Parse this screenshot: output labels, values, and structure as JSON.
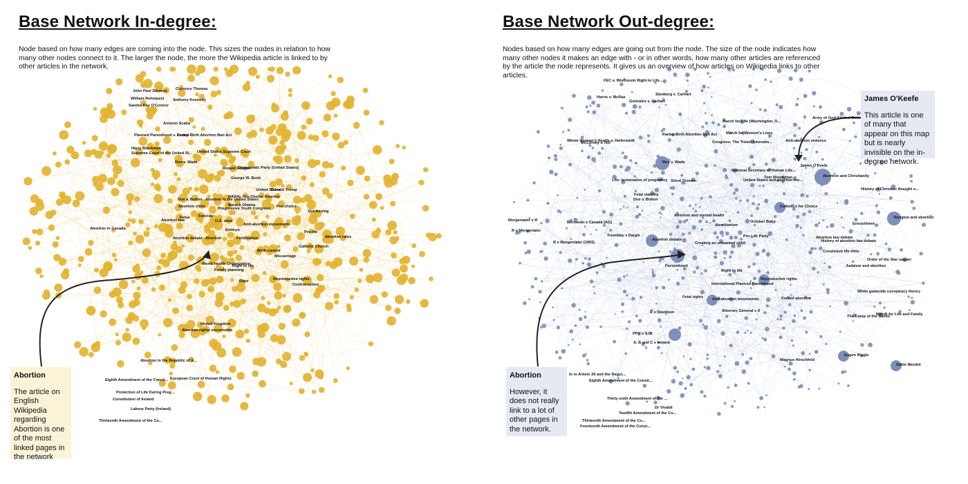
{
  "left": {
    "title": "Base Network In-degree:",
    "description": "Node based on how many edges are coming into the node. This sizes the nodes in relation to how many other nodes connect to it. The larger the node, the more the Wikipedia article is linked to by other articles in the network.",
    "node_color": "#e3b331",
    "edge_color": "#efd486",
    "callout": {
      "title": "Abortion",
      "body": "The article on English Wikipedia regarding Abortion is one of the most linked pages in the network"
    },
    "labels": [
      "John Paul Stevens",
      "Clarence Thomas",
      "William Rehnquist",
      "Anthony Kennedy",
      "Sandra Day O'Connor",
      "Antonin Scalia",
      "Planned Parenthood v. Casey",
      "Partial-Birth Abortion Ban Act",
      "Harry Blackmun",
      "Supreme Court of the United St...",
      "United States Supreme Court",
      "Roe v. Wade",
      "Ronald Reagan",
      "Democratic Party (United States)",
      "George W. Bush",
      "United States",
      "Donald Trump",
      "Doe v. Bolton",
      "Abortion in the United States",
      "NARAL Pro-Choice America",
      "Barack Obama",
      "Abortion clinic",
      "Progressive Youth Congress",
      "Pro-choice",
      "Quickening",
      "Fetus",
      "Abortion law",
      "Feticide",
      "U.S. state",
      "Anti-abortion movements",
      "Embryo",
      "Pro-life",
      "Abortion in Canada",
      "Abortion debate",
      "Abortion",
      "Fertilization",
      "Abortion rates",
      "Catholic Church",
      "Birth control",
      "Miscarriage",
      "World Health Organization",
      "Right to life",
      "Family planning",
      "Rape",
      "Reproductive rights",
      "Contraception",
      "United Kingdom",
      "Abortion-rights movements",
      "Abortion in the Republic of Ir...",
      "Eighth Amendment of the Consti...",
      "European Court of Human Rights",
      "Protection of Life During Preg...",
      "Constitution of Ireland",
      "Labour Party (Ireland)",
      "Thirteenth Amendment of the Co..."
    ]
  },
  "right": {
    "title": "Base Network Out-degree:",
    "description": "Nodes based on how many edges are going out from the node. The size of the node indicates how many other nodes it makes an edge with - or in other words, how many other articles are referenced by the article the node represents. It gives us an overview of how articles on Wikipedia links to other articles.",
    "node_color": "#7f8fba",
    "edge_color": "#c5cde2",
    "callout_abortion": {
      "title": "Abortion",
      "body": "However, it does not really link to a lot of other pages in the network."
    },
    "callout_okeefe": {
      "title": "James O'Keefe",
      "body": "This article is one of many that appear on this map but is nearly invisible on the in-degree network."
    },
    "labels": [
      "FEC v. Wisconsin Right to Life...",
      "Harris v. McRae",
      "Gonzales v. Carhart",
      "Stenberg v. Carhart",
      "Whole Woman's Health v. Hellerstedt",
      "Partial-Birth Abortion Ban Act",
      "March for Life (Washington, D...",
      "March for Women's Lives",
      "Army of God (United States)",
      "Anti-abortion violence",
      "Congress: The Travel Amendm...",
      "McCorvey v. Hill",
      "Roe v. Wade",
      "Tom Monaghan",
      "James O'Keefe",
      "National Secretary of Human Life...",
      "Abortion and Christianity",
      "Life: termination of pregnancy",
      "Silent Scream",
      "Abortion and mental health",
      "United States anti-abortion mo...",
      "Fetal viability",
      "Doe v. Bolton",
      "Catholics for Choice",
      "History of Christian thought o...",
      "Morgentaler v R",
      "R v Morgentaler",
      "Borowski v Canada (AG)",
      "R v Morgentaler (1993)",
      "Tremblay v Daigle",
      "Abortion debate",
      "Abortionism",
      "October Baby",
      "Religion and abortion",
      "Ensoulment",
      "Abortion law debate",
      "Pro-Life Party",
      "History of abortion law debate",
      "Consistent life ethic",
      "Creating an unwanted child",
      "Judaism and abortion",
      "Order of the Star vaguer",
      "Personhood",
      "Right to life",
      "International Planned Parenthood",
      "Reproductive rights",
      "Anti-abortion movements",
      "Forced abortion",
      "Fetal rights",
      "White genocide conspiracy theory",
      "R v Davidson",
      "Attorney General v X",
      "The Camp of the Saints",
      "March for Life and Family",
      "PPN v SJB",
      "A, B and C v Ireland",
      "Eugen Riegle",
      "Sahle Mesihit",
      "Magnus Hirschfeld",
      "In re Article 26 and the Regul...",
      "Eighth Amendment of the Consti...",
      "Thirty-sixth Amendment of the ...",
      "Twelfth Amendment of the Co...",
      "Thirteenth Amendment of the Co...",
      "Fourteenth Amendment of the Const...",
      "Dr Vivaldi"
    ]
  }
}
